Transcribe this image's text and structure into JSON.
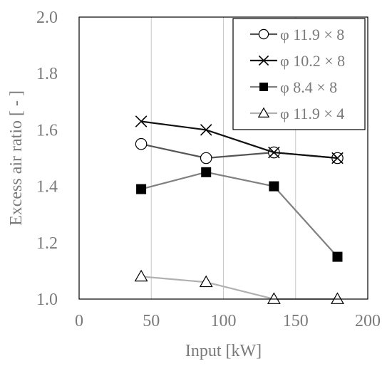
{
  "chart_data": {
    "type": "line",
    "xlabel": "Input [kW]",
    "ylabel": "Excess air ratio [ - ]",
    "xlim": [
      0,
      200
    ],
    "ylim": [
      1.0,
      2.0
    ],
    "x_ticks": [
      0,
      50,
      100,
      150,
      200
    ],
    "y_ticks": [
      1.0,
      1.2,
      1.4,
      1.6,
      1.8,
      2.0
    ],
    "x_tick_labels": [
      "0",
      "50",
      "100",
      "150",
      "200"
    ],
    "y_tick_labels": [
      "1.0",
      "1.2",
      "1.4",
      "1.6",
      "1.8",
      "2.0"
    ],
    "grid": "vertical",
    "legend_position": "top-right",
    "series": [
      {
        "name": "φ  11.9 × 8",
        "marker": "circle-open",
        "color": "#555555",
        "x": [
          43,
          88,
          135,
          179
        ],
        "y": [
          1.55,
          1.5,
          1.52,
          1.5
        ]
      },
      {
        "name": "φ  10.2 × 8",
        "marker": "x",
        "color": "#111111",
        "x": [
          43,
          88,
          135,
          179
        ],
        "y": [
          1.63,
          1.6,
          1.52,
          1.5
        ]
      },
      {
        "name": "φ  8.4 × 8",
        "marker": "square-filled",
        "color": "#808080",
        "x": [
          43,
          88,
          135,
          179
        ],
        "y": [
          1.39,
          1.45,
          1.4,
          1.15
        ]
      },
      {
        "name": "φ  11.9 × 4",
        "marker": "triangle-open",
        "color": "#b0b0b0",
        "x": [
          43,
          88,
          135,
          179
        ],
        "y": [
          1.08,
          1.06,
          1.0,
          1.0
        ]
      }
    ]
  }
}
